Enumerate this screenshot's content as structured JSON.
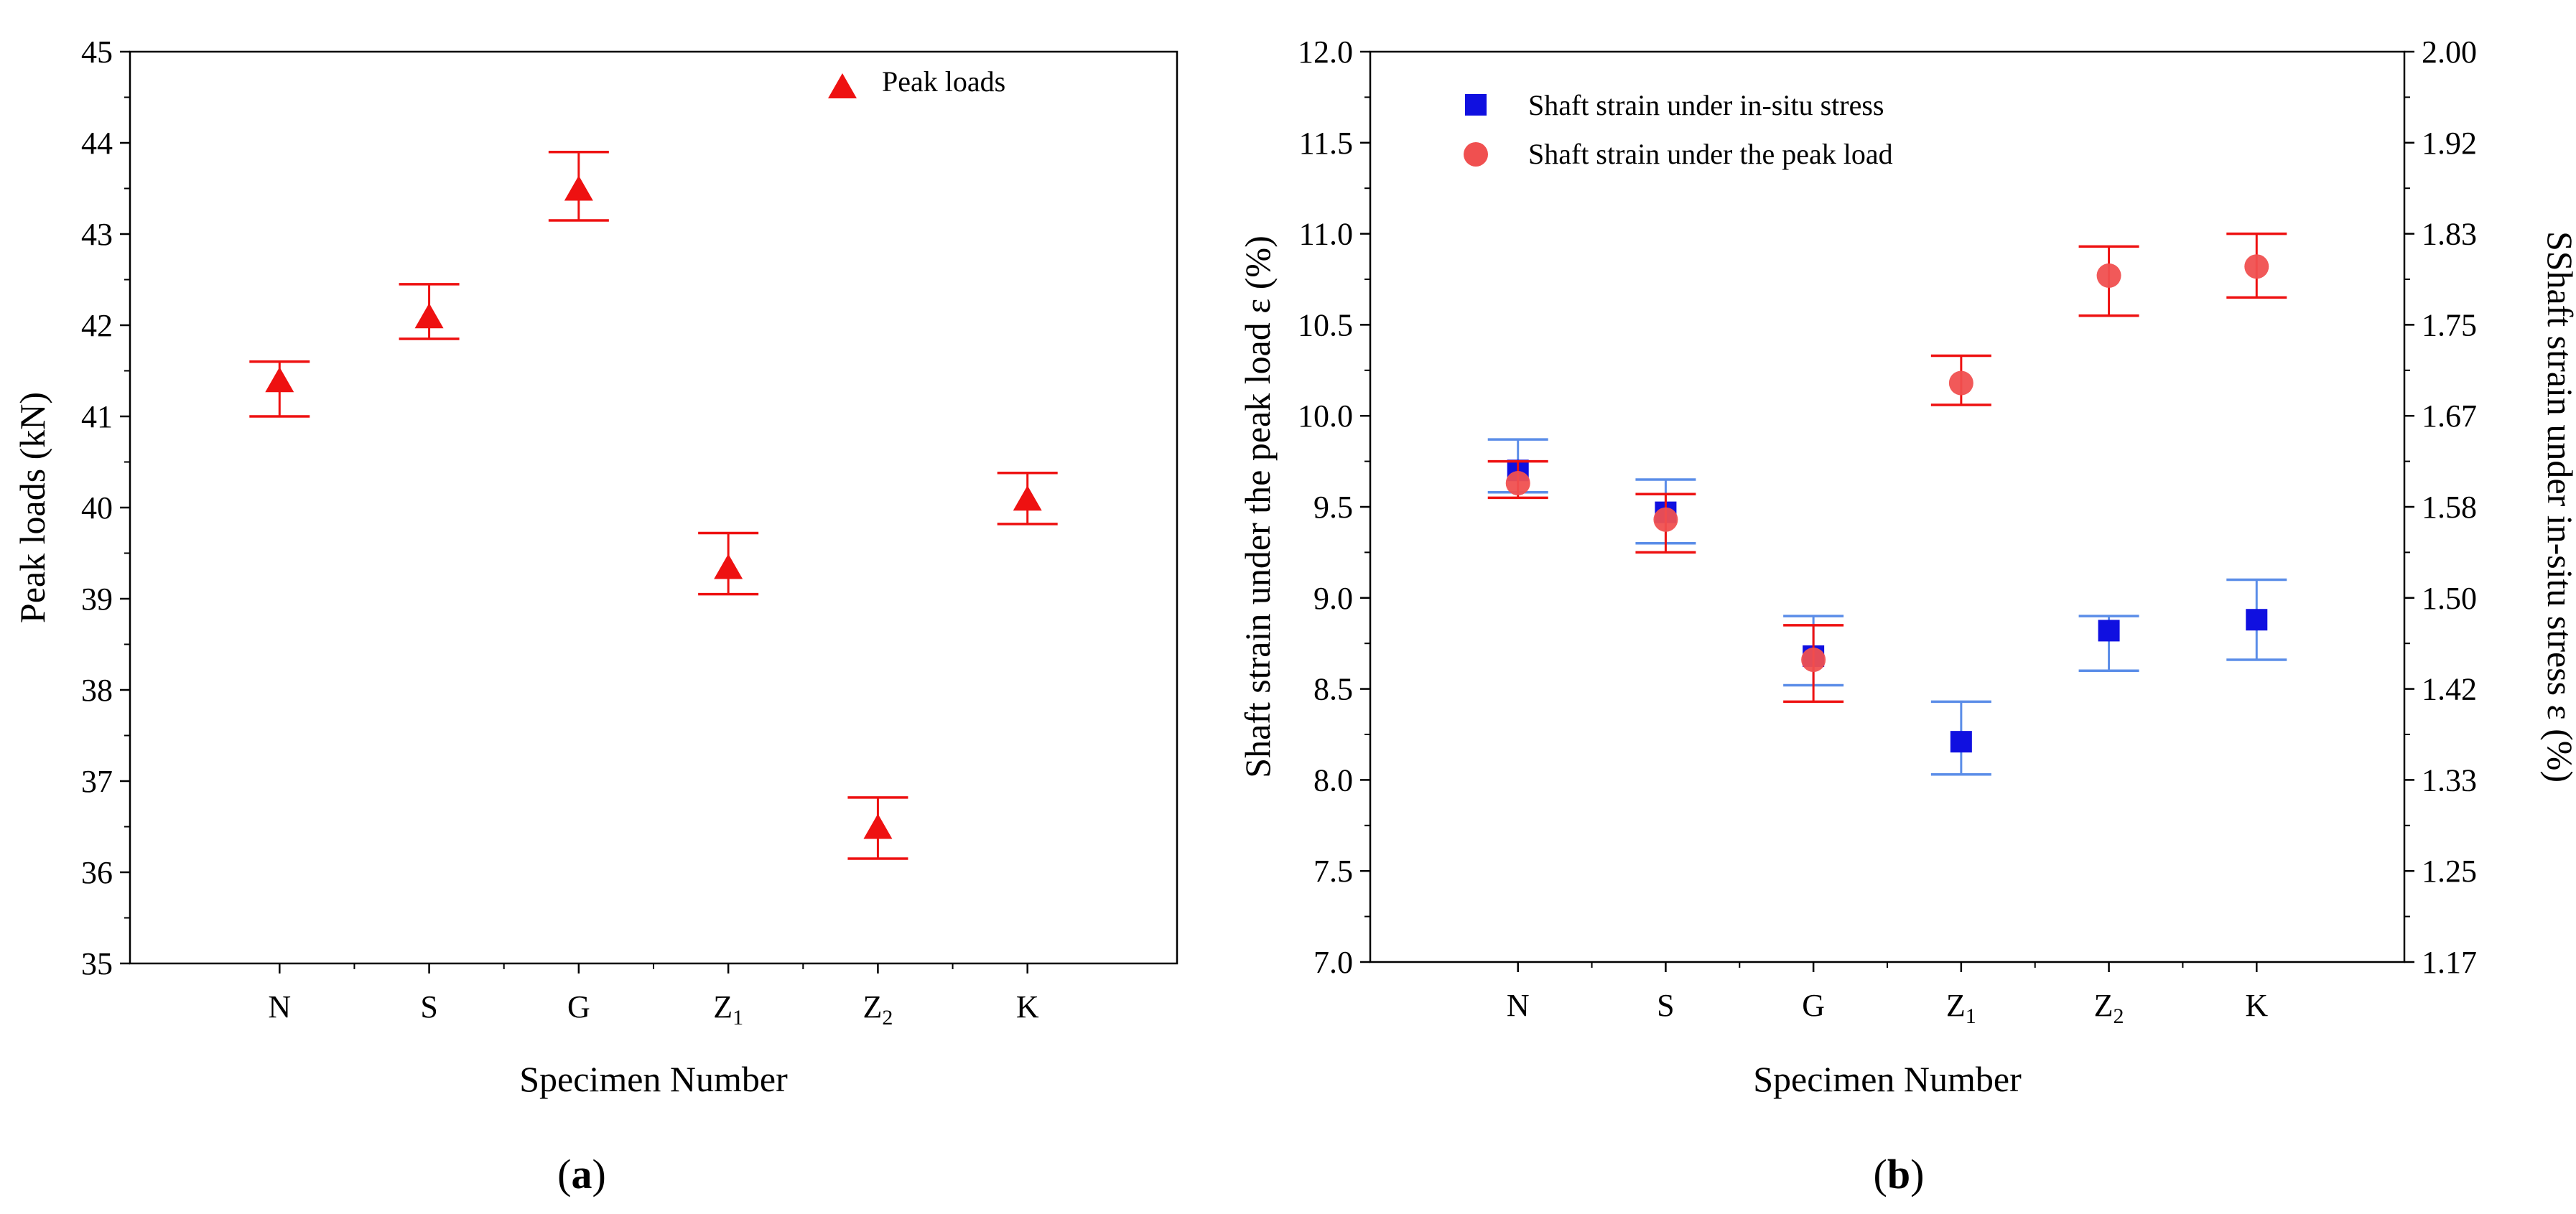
{
  "chart_data": [
    {
      "type": "scatter",
      "panel_label": "(a)",
      "panel_letter": "a",
      "categories": [
        "N",
        "S",
        "G",
        "Z",
        "Z",
        "K"
      ],
      "category_subscripts": [
        "",
        "",
        "",
        "1",
        "2",
        ""
      ],
      "xlabel": "Specimen Number",
      "ylabel": "Peak loads (kN)",
      "ylim": [
        35,
        45
      ],
      "yticks": [
        35,
        36,
        37,
        38,
        39,
        40,
        41,
        42,
        43,
        44,
        45
      ],
      "legend_position": "top-right",
      "series": [
        {
          "name": "Peak loads",
          "marker": "triangle",
          "color": "#ee1111",
          "values": [
            41.4,
            42.1,
            43.5,
            39.35,
            36.5,
            40.1
          ],
          "error_low": [
            41.0,
            41.85,
            43.15,
            39.05,
            36.15,
            39.82
          ],
          "error_high": [
            41.6,
            42.45,
            43.9,
            39.72,
            36.82,
            40.38
          ]
        }
      ]
    },
    {
      "type": "scatter",
      "panel_label": "(b)",
      "panel_letter": "b",
      "categories": [
        "N",
        "S",
        "G",
        "Z",
        "Z",
        "K"
      ],
      "category_subscripts": [
        "",
        "",
        "",
        "1",
        "2",
        ""
      ],
      "xlabel": "Specimen Number",
      "ylabel": "Shaft strain under the peak load  ε  (%)",
      "ylim": [
        7.0,
        12.0
      ],
      "yticks": [
        "7.0",
        "7.5",
        "8.0",
        "8.5",
        "9.0",
        "9.5",
        "10.0",
        "10.5",
        "11.0",
        "11.5",
        "12.0"
      ],
      "y2label": "SShaft strain under in-situ stress  ε  (%)",
      "y2lim": [
        1.17,
        2.0
      ],
      "y2ticks": [
        "1.17",
        "1.25",
        "1.33",
        "1.42",
        "1.50",
        "1.58",
        "1.67",
        "1.75",
        "1.83",
        "1.92",
        "2.00"
      ],
      "legend_position": "top-left",
      "series": [
        {
          "name": "Shaft strain under in-situ stress",
          "marker": "square",
          "color": "#1010e0",
          "error_color": "#5b8de8",
          "values_left_axis": [
            9.7,
            9.47,
            8.68,
            8.21,
            8.82,
            8.88
          ],
          "error_low": [
            9.58,
            9.3,
            8.52,
            8.03,
            8.6,
            8.66
          ],
          "error_high": [
            9.87,
            9.65,
            8.9,
            8.43,
            8.9,
            9.1
          ]
        },
        {
          "name": "Shaft strain under the peak load",
          "marker": "circle",
          "color": "#f05050",
          "error_color": "#ee1111",
          "values_left_axis": [
            9.63,
            9.43,
            8.66,
            10.18,
            10.77,
            10.82
          ],
          "error_low": [
            9.55,
            9.25,
            8.43,
            10.06,
            10.55,
            10.65
          ],
          "error_high": [
            9.75,
            9.57,
            8.85,
            10.33,
            10.93,
            11.0
          ]
        }
      ]
    }
  ]
}
